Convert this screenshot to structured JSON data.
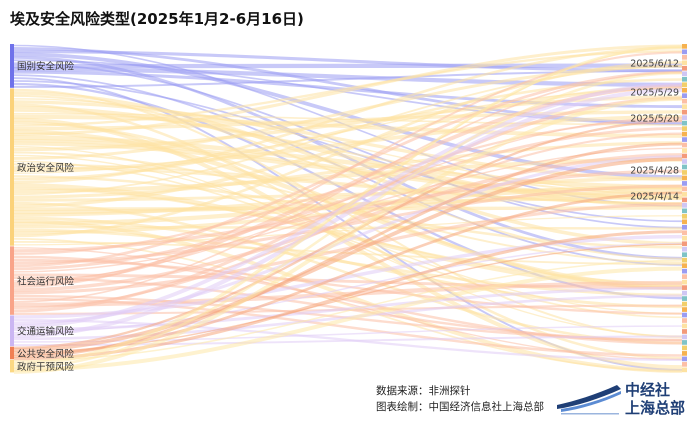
{
  "title": "埃及安全风险类型(2025年1月2-6月16日)",
  "chart_data": {
    "type": "sankey",
    "title": "埃及安全风险类型(2025年1月2-6月16日)",
    "sources": [
      {
        "name": "国别安全风险",
        "color": "#9a9cf2",
        "share": 0.135
      },
      {
        "name": "政治安全风险",
        "color": "#fde2a2",
        "share": 0.48
      },
      {
        "name": "社会运行风险",
        "color": "#fcbfa6",
        "share": 0.21
      },
      {
        "name": "交通运输风险",
        "color": "#e0ccf6",
        "share": 0.095
      },
      {
        "name": "公共安全风险",
        "color": "#f6a77e",
        "share": 0.04
      },
      {
        "name": "政府干预风险",
        "color": "#fde7a8",
        "share": 0.04
      }
    ],
    "date_labels": [
      "2025/6/12",
      "2025/5/29",
      "2025/5/20",
      "2025/4/28",
      "2025/4/14"
    ]
  },
  "footer": {
    "source_label": "数据来源：",
    "source_value": "非洲探针",
    "drawn_label": "图表绘制：",
    "drawn_value": "中国经济信息社上海总部"
  },
  "logo": {
    "line1": "中经社",
    "line2": "上海总部"
  }
}
